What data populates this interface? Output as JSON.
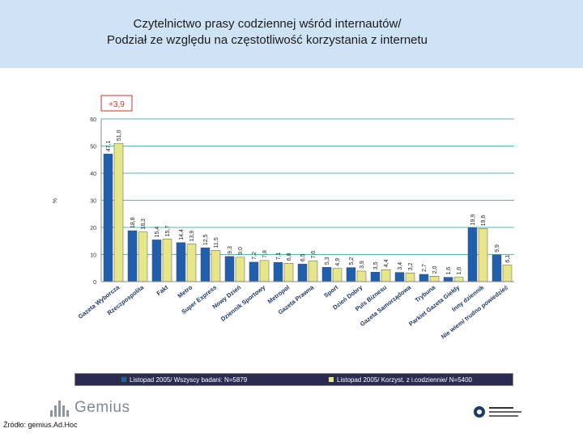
{
  "title_line1": "Czytelnictwo prasy codziennej wśród internautów/",
  "title_line2": "Podział ze względu na częstotliwość korzystania z internetu",
  "annotation": "+3,9",
  "source": "Źródło: gemius.Ad.Hoc",
  "logo": "Gemius",
  "colors": {
    "header": "#cfe3f6",
    "series1": "#1f5fae",
    "series2": "#e6e68a",
    "grid": "#2f9a8a",
    "annotation": "#c0392b"
  },
  "chart_data": {
    "type": "bar",
    "ylabel": "%",
    "ylim": [
      0,
      60
    ],
    "yticks": [
      0,
      10,
      20,
      30,
      40,
      50,
      60
    ],
    "categories": [
      "Gazeta Wyborcza",
      "Rzeczpospolita",
      "Fakt",
      "Metro",
      "Super Express",
      "Nowy Dzień",
      "Dziennik Sportowy",
      "Metropol",
      "Gazeta Prawna",
      "Sport",
      "Dzień Dobry",
      "Puls Biznesu",
      "Gazeta Samorządowa",
      "Trybuna",
      "Parkiet Gazeta Giełdy",
      "Inny dziennik",
      "Nie wiem/ trudno powiedzieć"
    ],
    "series": [
      {
        "name": "Listopad 2005/ Wszyscy badani: N=5879",
        "values": [
          47.1,
          18.8,
          15.4,
          14.4,
          12.5,
          9.3,
          7.2,
          7.1,
          6.5,
          5.3,
          5.2,
          3.5,
          3.4,
          2.7,
          1.6,
          19.9,
          9.9
        ]
      },
      {
        "name": "Listopad 2005/ Korzyst. z i.codziennie/ N=5400",
        "values": [
          51.0,
          18.3,
          15.7,
          13.9,
          11.5,
          9.0,
          7.8,
          6.8,
          7.6,
          4.9,
          3.9,
          4.4,
          3.2,
          2.0,
          1.6,
          19.6,
          6.1
        ]
      }
    ]
  }
}
